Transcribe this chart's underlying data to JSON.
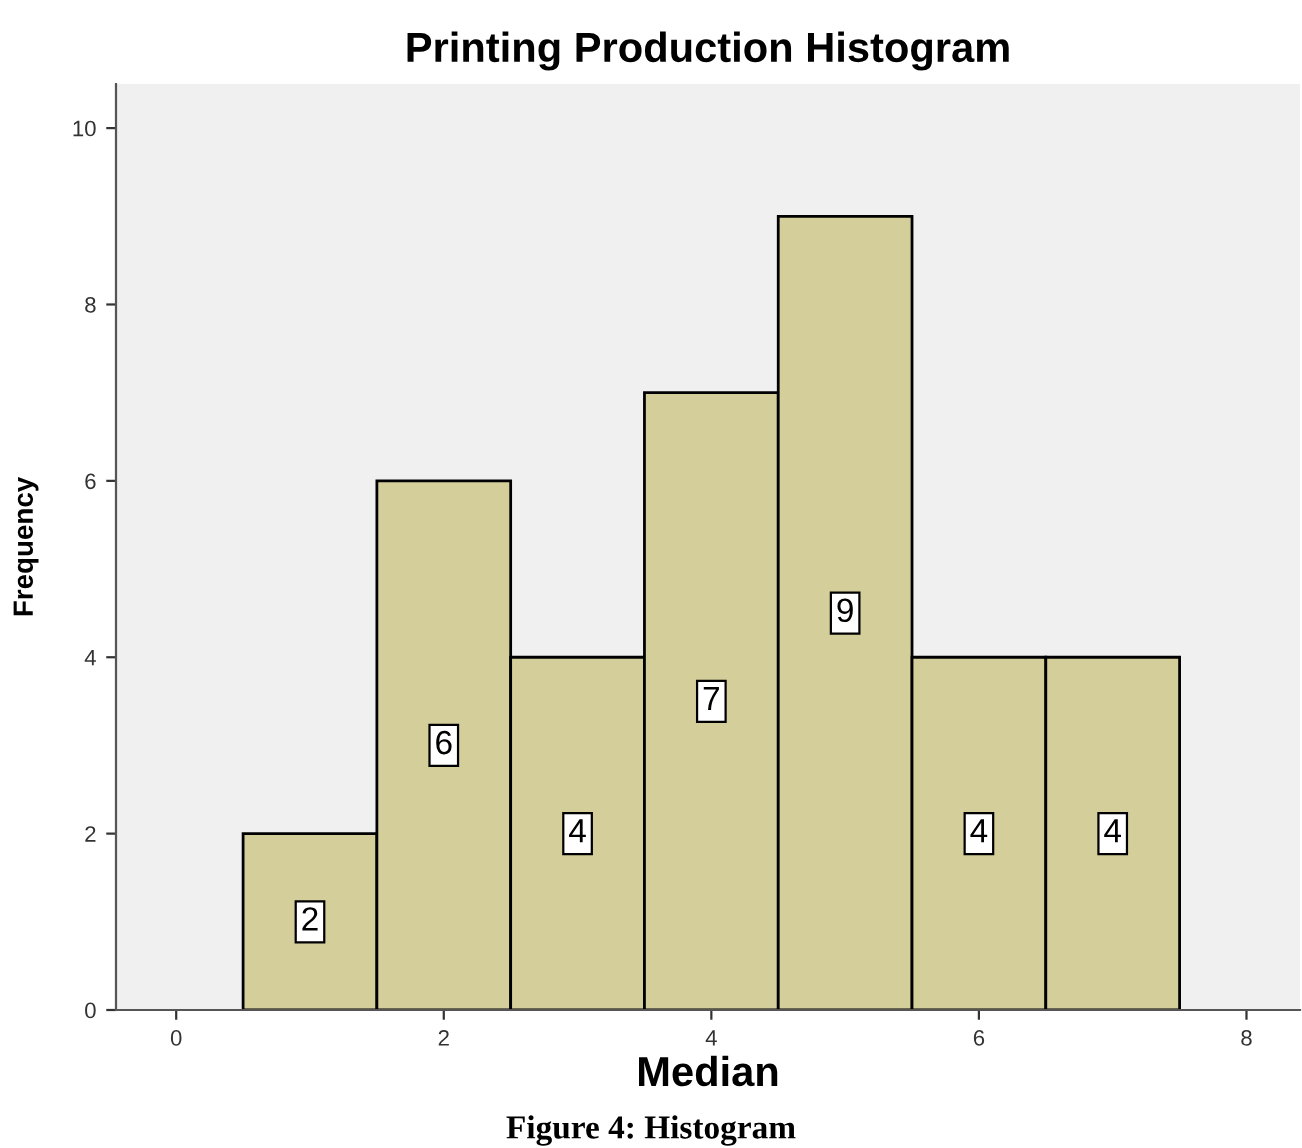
{
  "chart_data": {
    "type": "histogram",
    "title": "Printing Production Histogram",
    "xlabel": "Median",
    "ylabel": "Frequency",
    "bins": [
      0.5,
      1.5,
      2.5,
      3.5,
      4.5,
      5.5,
      6.5,
      7.5
    ],
    "values": [
      2,
      6,
      4,
      7,
      9,
      4,
      4
    ],
    "color": "#d4cf9a",
    "data_labels": true,
    "xlim": [
      -0.45,
      8.4
    ],
    "ylim": [
      0,
      10.5
    ],
    "xticks": [
      0,
      2,
      4,
      6,
      8
    ],
    "yticks": [
      0,
      2,
      4,
      6,
      8,
      10
    ],
    "grid": false,
    "annotations": [
      "Figure 4: Histogram"
    ]
  }
}
